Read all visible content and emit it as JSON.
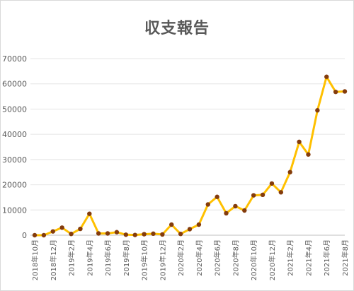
{
  "chart_data": {
    "type": "line",
    "title": "収支報告",
    "ylim": [
      0,
      70000
    ],
    "yticks": [
      0,
      10000,
      20000,
      30000,
      40000,
      50000,
      60000,
      70000
    ],
    "grid": true,
    "legend": "none",
    "line_color": "#ffc000",
    "marker_color": "#843c0c",
    "x": [
      "2018年10月",
      "2018年11月",
      "2018年12月",
      "2019年1月",
      "2019年2月",
      "2019年3月",
      "2019年4月",
      "2019年5月",
      "2019年6月",
      "2019年7月",
      "2019年8月",
      "2019年9月",
      "2019年10月",
      "2019年11月",
      "2019年12月",
      "2020年1月",
      "2020年2月",
      "2020年3月",
      "2020年4月",
      "2020年5月",
      "2020年6月",
      "2020年7月",
      "2020年8月",
      "2020年9月",
      "2020年10月",
      "2020年11月",
      "2020年12月",
      "2021年1月",
      "2021年2月",
      "2021年3月",
      "2021年4月",
      "2021年5月",
      "2021年6月",
      "2021年7月",
      "2021年8月"
    ],
    "x_tick_labels": [
      "2018年10月",
      "2018年12月",
      "2019年2月",
      "2019年4月",
      "2019年6月",
      "2019年8月",
      "2019年10月",
      "2019年12月",
      "2020年2月",
      "2020年4月",
      "2020年6月",
      "2020年8月",
      "2020年10月",
      "2020年12月",
      "2021年2月",
      "2021年4月",
      "2021年6月",
      "2021年8月"
    ],
    "series": [
      {
        "values": [
          0,
          0,
          1500,
          3000,
          500,
          2500,
          8500,
          700,
          700,
          1200,
          200,
          100,
          400,
          600,
          300,
          4200,
          500,
          2400,
          4200,
          12200,
          15200,
          8700,
          11500,
          9800,
          15800,
          16000,
          20500,
          17000,
          25000,
          37000,
          32000,
          49500,
          62800,
          56800,
          57000
        ]
      }
    ]
  }
}
